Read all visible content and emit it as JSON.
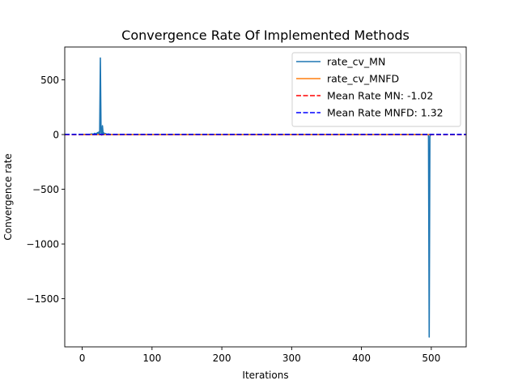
{
  "chart_data": {
    "type": "line",
    "title": "Convergence Rate Of Implemented Methods",
    "xlabel": "Iterations",
    "ylabel": "Convergence rate",
    "xlim": [
      -25,
      550
    ],
    "ylim": [
      -1940,
      800
    ],
    "xticks": [
      0,
      100,
      200,
      300,
      400,
      500
    ],
    "yticks": [
      -1500,
      -1000,
      -500,
      0,
      500
    ],
    "ytick_labels": [
      "−1500",
      "−1000",
      "−500",
      "0",
      "500"
    ],
    "grid": false,
    "legend_position": "top-right",
    "series": [
      {
        "name": "rate_cv_MN",
        "color": "#1f77b4",
        "style": "solid",
        "points": [
          [
            0,
            0
          ],
          [
            5,
            2
          ],
          [
            10,
            1
          ],
          [
            14,
            6
          ],
          [
            16,
            3
          ],
          [
            18,
            12
          ],
          [
            20,
            5
          ],
          [
            22,
            18
          ],
          [
            23,
            4
          ],
          [
            24,
            25
          ],
          [
            25,
            8
          ],
          [
            26,
            700
          ],
          [
            27,
            20
          ],
          [
            28,
            -5
          ],
          [
            29,
            80
          ],
          [
            30,
            5
          ],
          [
            31,
            15
          ],
          [
            32,
            2
          ],
          [
            33,
            10
          ],
          [
            35,
            3
          ],
          [
            38,
            5
          ],
          [
            40,
            1
          ],
          [
            60,
            0
          ],
          [
            100,
            0
          ],
          [
            200,
            0
          ],
          [
            300,
            0
          ],
          [
            400,
            0
          ],
          [
            480,
            0
          ],
          [
            495,
            0
          ],
          [
            496,
            -10
          ],
          [
            497,
            -1850
          ],
          [
            498,
            -20
          ],
          [
            499,
            0
          ]
        ]
      },
      {
        "name": "rate_cv_MNFD",
        "color": "#ff7f0e",
        "style": "solid",
        "points": [
          [
            0,
            0
          ],
          [
            100,
            0
          ],
          [
            200,
            0
          ],
          [
            300,
            0
          ],
          [
            400,
            0
          ],
          [
            499,
            0
          ]
        ]
      },
      {
        "name": "Mean Rate MN: -1.02",
        "color": "#ff0000",
        "style": "dashed",
        "hline": -1.02
      },
      {
        "name": "Mean Rate MNFD: 1.32",
        "color": "#0000ff",
        "style": "dashed",
        "hline": 1.32
      }
    ]
  }
}
